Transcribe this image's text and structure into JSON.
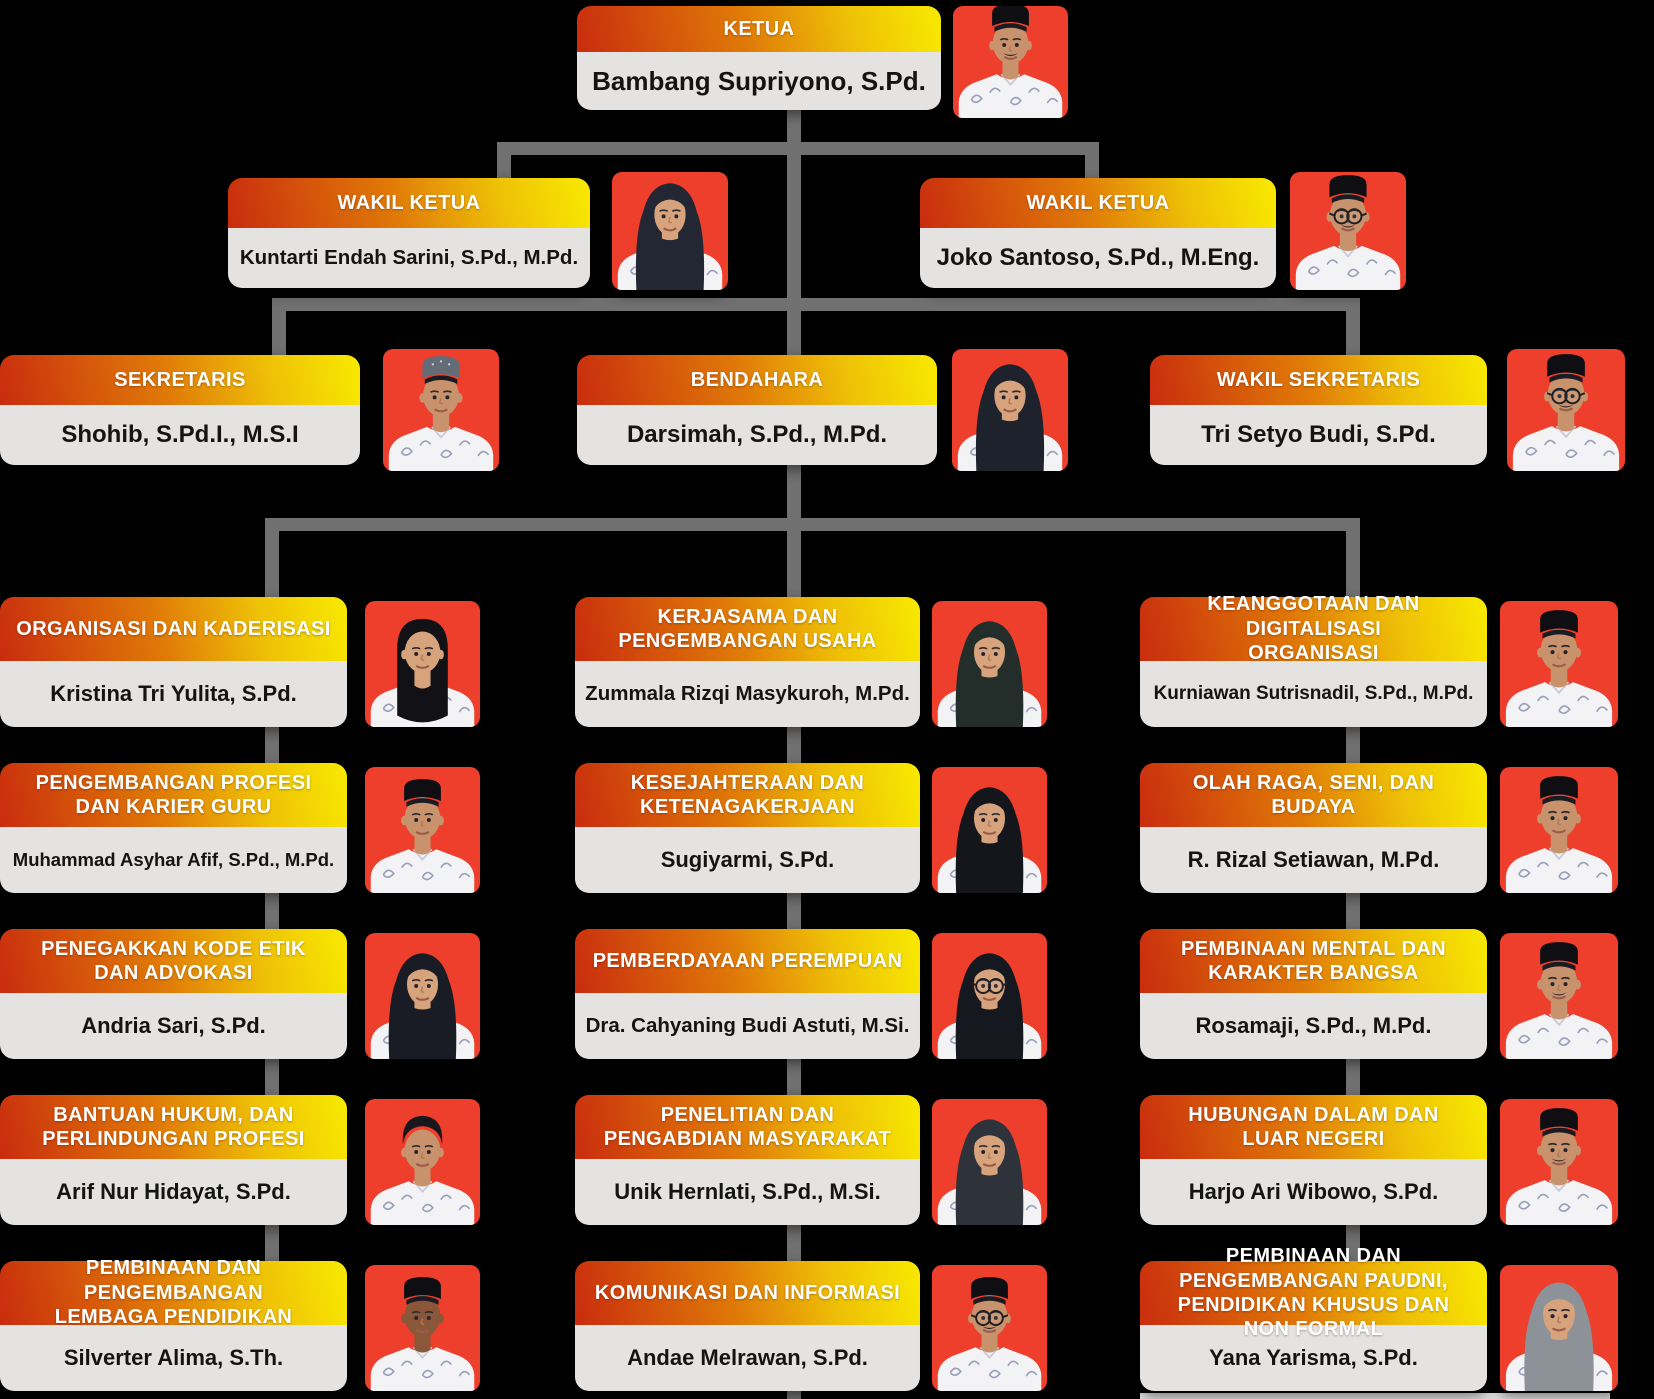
{
  "palette": {
    "background": "#000000",
    "header_gradient_start": "#c92c0e",
    "header_gradient_mid": "#e07a08",
    "header_gradient_end": "#f8ea00",
    "header_text": "#ffffff",
    "card_body_bg": "#e4e3e1",
    "name_text": "#141414",
    "photo_bg": "#ee3e2c",
    "connector": "#707070"
  },
  "org_chart": {
    "nodes": [
      {
        "role": "KETUA",
        "name": "Bambang Supriyono, S.Pd.",
        "photo": {
          "person": "man",
          "headwear": "peci",
          "glasses": false,
          "mustache": true
        }
      },
      {
        "role": "WAKIL KETUA",
        "name": "Kuntarti Endah Sarini, S.Pd., M.Pd.",
        "photo": {
          "person": "woman",
          "headwear": "hijab",
          "hijab_color": "#222733",
          "glasses": false
        }
      },
      {
        "role": "WAKIL KETUA",
        "name": "Joko Santoso, S.Pd., M.Eng.",
        "photo": {
          "person": "man",
          "headwear": "peci",
          "glasses": true,
          "mustache": true
        }
      },
      {
        "role": "SEKRETARIS",
        "name": "Shohib, S.Pd.I., M.S.I",
        "photo": {
          "person": "man",
          "headwear": "cap-gray",
          "glasses": false,
          "mustache": false
        }
      },
      {
        "role": "BENDAHARA",
        "name": "Darsimah, S.Pd., M.Pd.",
        "photo": {
          "person": "woman",
          "headwear": "hijab",
          "hijab_color": "#1e222c",
          "glasses": false
        }
      },
      {
        "role": "WAKIL SEKRETARIS",
        "name": "Tri Setyo Budi, S.Pd.",
        "photo": {
          "person": "man",
          "headwear": "peci",
          "glasses": true,
          "mustache": true
        }
      },
      {
        "role": "ORGANISASI DAN KADERISASI",
        "name": "Kristina Tri Yulita, S.Pd.",
        "photo": {
          "person": "woman",
          "headwear": "hair",
          "glasses": false
        }
      },
      {
        "role": "KERJASAMA DAN\nPENGEMBANGAN USAHA",
        "name": "Zummala Rizqi Masykuroh, M.Pd.",
        "photo": {
          "person": "woman",
          "headwear": "hijab",
          "hijab_color": "#232d2a",
          "glasses": false
        }
      },
      {
        "role": "KEANGGOTAAN DAN DIGITALISASI\nORGANISASI",
        "name": "Kurniawan Sutrisnadil, S.Pd., M.Pd.",
        "photo": {
          "person": "man",
          "headwear": "peci",
          "glasses": false,
          "mustache": false
        }
      },
      {
        "role": "PENGEMBANGAN PROFESI\nDAN KARIER GURU",
        "name": "Muhammad Asyhar Afif, S.Pd., M.Pd.",
        "photo": {
          "person": "man",
          "headwear": "peci",
          "glasses": false,
          "mustache": false
        }
      },
      {
        "role": "KESEJAHTERAAN DAN\nKETENAGAKERJAAN",
        "name": "Sugiyarmi, S.Pd.",
        "photo": {
          "person": "woman",
          "headwear": "hijab",
          "hijab_color": "#15161c",
          "glasses": false
        }
      },
      {
        "role": "OLAH RAGA, SENI, DAN BUDAYA",
        "name": "R. Rizal Setiawan, M.Pd.",
        "photo": {
          "person": "man",
          "headwear": "peci",
          "glasses": false,
          "mustache": false
        }
      },
      {
        "role": "PENEGAKKAN KODE ETIK\nDAN ADVOKASI",
        "name": "Andria Sari, S.Pd.",
        "photo": {
          "person": "woman",
          "headwear": "hijab",
          "hijab_color": "#191c24",
          "glasses": false
        }
      },
      {
        "role": "PEMBERDAYAAN PEREMPUAN",
        "name": "Dra. Cahyaning Budi Astuti, M.Si.",
        "photo": {
          "person": "woman",
          "headwear": "hijab",
          "hijab_color": "#16181f",
          "glasses": true
        }
      },
      {
        "role": "PEMBINAAN MENTAL DAN\nKARAKTER BANGSA",
        "name": "Rosamaji, S.Pd., M.Pd.",
        "photo": {
          "person": "man",
          "headwear": "peci",
          "glasses": false,
          "mustache": true
        }
      },
      {
        "role": "BANTUAN HUKUM, DAN\nPERLINDUNGAN PROFESI",
        "name": "Arif Nur Hidayat, S.Pd.",
        "photo": {
          "person": "man",
          "headwear": "hair",
          "glasses": false,
          "mustache": false
        }
      },
      {
        "role": "PENELITIAN DAN\nPENGABDIAN MASYARAKAT",
        "name": "Unik Hernlati, S.Pd., M.Si.",
        "photo": {
          "person": "woman",
          "headwear": "hijab",
          "hijab_color": "#2e323a",
          "glasses": false
        }
      },
      {
        "role": "HUBUNGAN DALAM DAN\nLUAR NEGERI",
        "name": "Harjo Ari Wibowo, S.Pd.",
        "photo": {
          "person": "man",
          "headwear": "peci",
          "glasses": false,
          "mustache": true
        }
      },
      {
        "role": "PEMBINAAN DAN PENGEMBANGAN\nLEMBAGA PENDIDIKAN",
        "name": "Silverter Alima, S.Th.",
        "photo": {
          "person": "man",
          "headwear": "peci",
          "glasses": false,
          "mustache": false,
          "skin": "#8a573a"
        }
      },
      {
        "role": "KOMUNIKASI DAN INFORMASI",
        "name": "Andae Melrawan, S.Pd.",
        "photo": {
          "person": "man",
          "headwear": "peci",
          "glasses": true,
          "mustache": true
        }
      },
      {
        "role": "PEMBINAAN DAN PENGEMBANGAN PAUDNI,\nPENDIDIKAN KHUSUS DAN NON FORMAL",
        "name": "Yana Yarisma, S.Pd.",
        "photo": {
          "person": "woman",
          "headwear": "hijab",
          "hijab_color": "#8d9299",
          "glasses": false
        }
      }
    ]
  }
}
